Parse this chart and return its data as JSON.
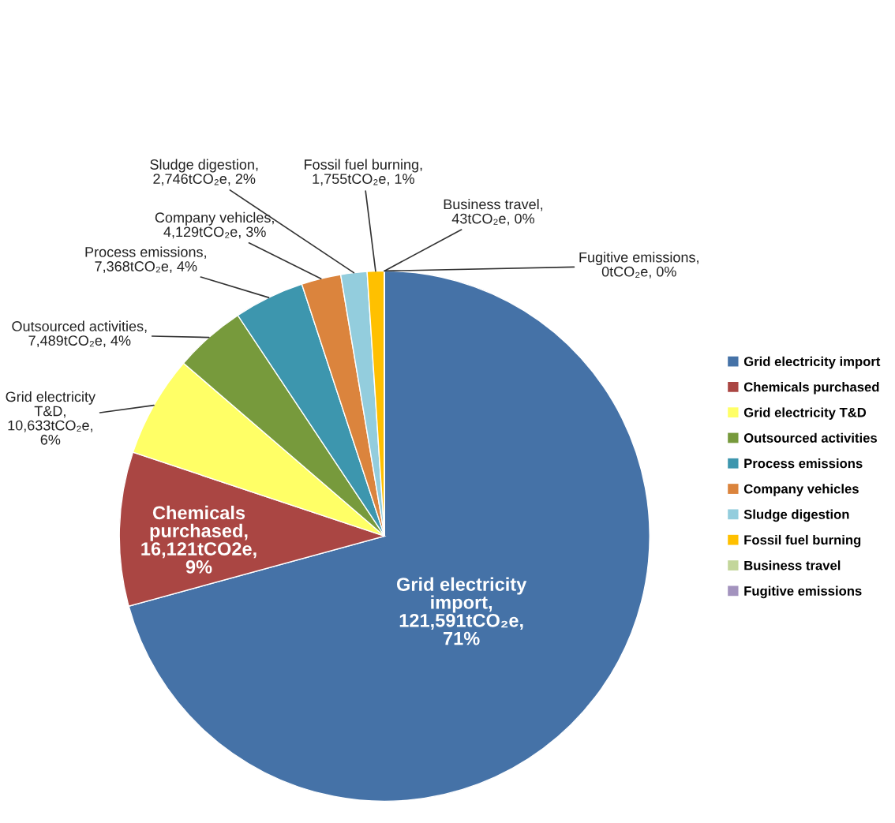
{
  "chart_data": {
    "type": "pie",
    "categories": [
      "Grid electricity import",
      "Chemicals purchased",
      "Grid electricity T&D",
      "Outsourced activities",
      "Process emissions",
      "Company vehicles",
      "Sludge digestion",
      "Fossil fuel burning",
      "Business travel",
      "Fugitive emissions"
    ],
    "values": [
      121591,
      16121,
      10633,
      7489,
      7368,
      4129,
      2746,
      1755,
      43,
      0
    ],
    "colors": [
      "#4572a7",
      "#aa4643",
      "#ffff66",
      "#779a3c",
      "#3d96ae",
      "#db843d",
      "#93cddd",
      "#ffc000",
      "#c3d69b",
      "#a393be"
    ],
    "value_labels": [
      "Grid electricity\nimport,\n121,591tCO₂e,\n71%",
      "Chemicals\npurchased,\n16,121tCO2e,\n9%",
      "Grid electricity\nT&D,\n10,633tCO₂e,\n6%",
      "Outsourced activities,\n7,489tCO₂e, 4%",
      "Process emissions,\n7,368tCO₂e, 4%",
      "Company vehicles,\n4,129tCO₂e, 3%",
      "Sludge digestion,\n2,746tCO₂e, 2%",
      "Fossil fuel burning,\n1,755tCO₂e, 1%",
      "Business travel,\n43tCO₂e, 0%",
      "Fugitive emissions,\n0tCO₂e, 0%"
    ],
    "legend": "right"
  }
}
